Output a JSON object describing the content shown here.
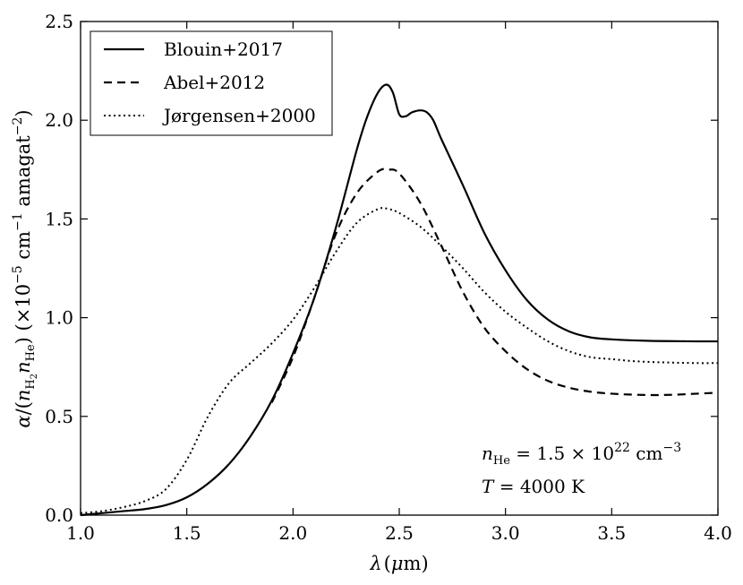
{
  "chart_data": {
    "type": "line",
    "title": "",
    "xlabel": "λ (μm)",
    "ylabel": "α/(n_H2 n_He) (×10^−5 cm^−1 amagat^−2)",
    "xlim": [
      1.0,
      4.0
    ],
    "ylim": [
      0.0,
      2.5
    ],
    "xticks": [
      1.0,
      1.5,
      2.0,
      2.5,
      3.0,
      3.5,
      4.0
    ],
    "yticks": [
      0.0,
      0.5,
      1.0,
      1.5,
      2.0,
      2.5
    ],
    "xtick_labels": [
      "1.0",
      "1.5",
      "2.0",
      "2.5",
      "3.0",
      "3.5",
      "4.0"
    ],
    "ytick_labels": [
      "0.0",
      "0.5",
      "1.0",
      "1.5",
      "2.0",
      "2.5"
    ],
    "grid": false,
    "legend_position": "top-left",
    "annotations": {
      "density": "n_He = 1.5 × 10^22 cm^−3",
      "temperature": "T = 4000 K"
    },
    "series": [
      {
        "name": "Blouin+2017",
        "style": "solid",
        "x": [
          1.0,
          1.1,
          1.2,
          1.3,
          1.4,
          1.5,
          1.6,
          1.7,
          1.8,
          1.9,
          2.0,
          2.1,
          2.2,
          2.3,
          2.35,
          2.4,
          2.44,
          2.47,
          2.5,
          2.53,
          2.56,
          2.6,
          2.63,
          2.66,
          2.7,
          2.8,
          2.9,
          3.0,
          3.1,
          3.2,
          3.3,
          3.4,
          3.5,
          3.6,
          3.7,
          3.8,
          3.9,
          4.0
        ],
        "values": [
          0.0,
          0.01,
          0.02,
          0.03,
          0.05,
          0.09,
          0.16,
          0.26,
          0.4,
          0.58,
          0.82,
          1.1,
          1.45,
          1.85,
          2.02,
          2.14,
          2.18,
          2.14,
          2.03,
          2.02,
          2.04,
          2.05,
          2.04,
          2.0,
          1.9,
          1.67,
          1.43,
          1.24,
          1.09,
          0.99,
          0.93,
          0.9,
          0.89,
          0.885,
          0.882,
          0.881,
          0.88,
          0.88
        ]
      },
      {
        "name": "Abel+2012",
        "style": "dashed",
        "x": [
          1.9,
          2.0,
          2.1,
          2.2,
          2.3,
          2.4,
          2.45,
          2.5,
          2.6,
          2.7,
          2.8,
          2.9,
          3.0,
          3.1,
          3.2,
          3.3,
          3.4,
          3.5,
          3.6,
          3.7,
          3.8,
          3.9,
          4.0
        ],
        "values": [
          0.57,
          0.8,
          1.1,
          1.42,
          1.63,
          1.74,
          1.75,
          1.73,
          1.58,
          1.36,
          1.13,
          0.95,
          0.83,
          0.74,
          0.68,
          0.645,
          0.625,
          0.615,
          0.61,
          0.608,
          0.61,
          0.615,
          0.62
        ]
      },
      {
        "name": "Jørgensen+2000",
        "style": "dotted",
        "x": [
          1.0,
          1.1,
          1.2,
          1.3,
          1.4,
          1.5,
          1.6,
          1.7,
          1.8,
          1.9,
          2.0,
          2.1,
          2.2,
          2.3,
          2.4,
          2.45,
          2.5,
          2.6,
          2.7,
          2.8,
          2.9,
          3.0,
          3.1,
          3.2,
          3.3,
          3.4,
          3.5,
          3.6,
          3.7,
          3.8,
          3.9,
          4.0
        ],
        "values": [
          0.01,
          0.02,
          0.04,
          0.07,
          0.13,
          0.28,
          0.5,
          0.67,
          0.77,
          0.87,
          0.99,
          1.15,
          1.33,
          1.48,
          1.55,
          1.55,
          1.53,
          1.46,
          1.36,
          1.25,
          1.13,
          1.03,
          0.95,
          0.88,
          0.83,
          0.8,
          0.79,
          0.78,
          0.775,
          0.772,
          0.77,
          0.77
        ]
      }
    ]
  }
}
